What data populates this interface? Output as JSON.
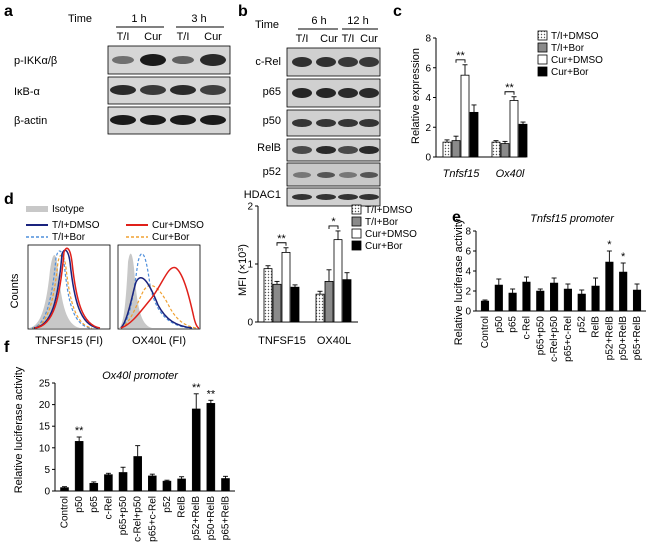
{
  "panel_a": {
    "label": "a",
    "time_label": "Time",
    "times": [
      "1 h",
      "3 h"
    ],
    "conditions": [
      "T/I",
      "Cur",
      "T/I",
      "Cur"
    ],
    "rows": [
      "p-IKKα/β",
      "IκB-α",
      "β-actin"
    ]
  },
  "panel_b": {
    "label": "b",
    "time_label": "Time",
    "times": [
      "6 h",
      "12 h"
    ],
    "conditions": [
      "T/I",
      "Cur",
      "T/I",
      "Cur"
    ],
    "rows": [
      "c-Rel",
      "p65",
      "p50",
      "RelB",
      "p52",
      "HDAC1"
    ]
  },
  "panel_c": {
    "label": "c",
    "chart_data": {
      "type": "bar",
      "ylabel": "Relative expression",
      "ylim": [
        0,
        8
      ],
      "yticks": [
        "0",
        "2",
        "4",
        "6",
        "8"
      ],
      "categories": [
        "Tnfsf15",
        "Ox40l"
      ],
      "series": [
        {
          "name": "T/I+DMSO",
          "values": [
            1.0,
            1.0
          ],
          "errors": [
            0.15,
            0.1
          ]
        },
        {
          "name": "T/I+Bor",
          "values": [
            1.1,
            0.9
          ],
          "errors": [
            0.3,
            0.15
          ]
        },
        {
          "name": "Cur+DMSO",
          "values": [
            5.5,
            3.8
          ],
          "errors": [
            0.7,
            0.25
          ]
        },
        {
          "name": "Cur+Bor",
          "values": [
            3.0,
            2.2
          ],
          "errors": [
            0.5,
            0.15
          ]
        }
      ],
      "significance": [
        "**",
        "**"
      ]
    }
  },
  "panel_d": {
    "label": "d",
    "flow": {
      "ylabel": "Counts",
      "legend": [
        "Isotype",
        "T/I+DMSO",
        "T/I+Bor",
        "Cur+DMSO",
        "Cur+Bor"
      ],
      "xlabels": [
        "TNFSF15 (FI)",
        "OX40L (FI)"
      ]
    },
    "chart_data": {
      "type": "bar",
      "ylabel": "MFI (×10",
      "ylabel_sup": "3",
      "ylabel_end": ")",
      "ylim": [
        0,
        2
      ],
      "yticks": [
        "0",
        "1",
        "2"
      ],
      "categories": [
        "TNFSF15",
        "OX40L"
      ],
      "series": [
        {
          "name": "T/I+DMSO",
          "values": [
            0.92,
            0.48
          ],
          "errors": [
            0.05,
            0.05
          ]
        },
        {
          "name": "T/I+Bor",
          "values": [
            0.65,
            0.7
          ],
          "errors": [
            0.05,
            0.2
          ]
        },
        {
          "name": "Cur+DMSO",
          "values": [
            1.2,
            1.42
          ],
          "errors": [
            0.08,
            0.15
          ]
        },
        {
          "name": "Cur+Bor",
          "values": [
            0.6,
            0.73
          ],
          "errors": [
            0.04,
            0.12
          ]
        }
      ],
      "significance": [
        "**",
        "*"
      ]
    }
  },
  "panel_e": {
    "label": "e",
    "chart_data": {
      "type": "bar",
      "title": "Tnfsf15 promoter",
      "ylabel": "Relative luciferase activity",
      "ylim": [
        0,
        8
      ],
      "yticks": [
        "0",
        "2",
        "4",
        "6",
        "8"
      ],
      "categories": [
        "Control",
        "p50",
        "p65",
        "c-Rel",
        "p65+p50",
        "c-Rel+p50",
        "p65+c-Rel",
        "p52",
        "RelB",
        "p52+RelB",
        "p50+RelB",
        "p65+RelB"
      ],
      "values": [
        1.0,
        2.6,
        1.8,
        2.9,
        2.0,
        2.8,
        2.2,
        1.7,
        2.5,
        4.9,
        3.9,
        2.1
      ],
      "errors": [
        0.1,
        0.6,
        0.4,
        0.5,
        0.2,
        0.5,
        0.5,
        0.4,
        0.8,
        1.1,
        0.9,
        0.6
      ],
      "significance": [
        "",
        "",
        "",
        "",
        "",
        "",
        "",
        "",
        "",
        "*",
        "*",
        ""
      ]
    }
  },
  "panel_f": {
    "label": "f",
    "chart_data": {
      "type": "bar",
      "title": "Ox40l promoter",
      "ylabel": "Relative luciferase activity",
      "ylim": [
        0,
        25
      ],
      "yticks": [
        "0",
        "5",
        "10",
        "15",
        "20",
        "25"
      ],
      "categories": [
        "Control",
        "p50",
        "p65",
        "c-Rel",
        "p65+p50",
        "c-Rel+p50",
        "p65+c-Rel",
        "p52",
        "RelB",
        "p52+RelB",
        "p50+RelB",
        "p65+RelB"
      ],
      "values": [
        0.8,
        11.5,
        1.8,
        3.8,
        4.3,
        8.0,
        3.5,
        2.3,
        2.8,
        19.0,
        20.3,
        2.9
      ],
      "errors": [
        0.2,
        1.0,
        0.3,
        0.3,
        1.2,
        2.5,
        0.4,
        0.2,
        0.5,
        3.5,
        0.7,
        0.5
      ],
      "significance": [
        "",
        "**",
        "",
        "",
        "",
        "",
        "",
        "",
        "",
        "**",
        "**",
        ""
      ]
    }
  }
}
